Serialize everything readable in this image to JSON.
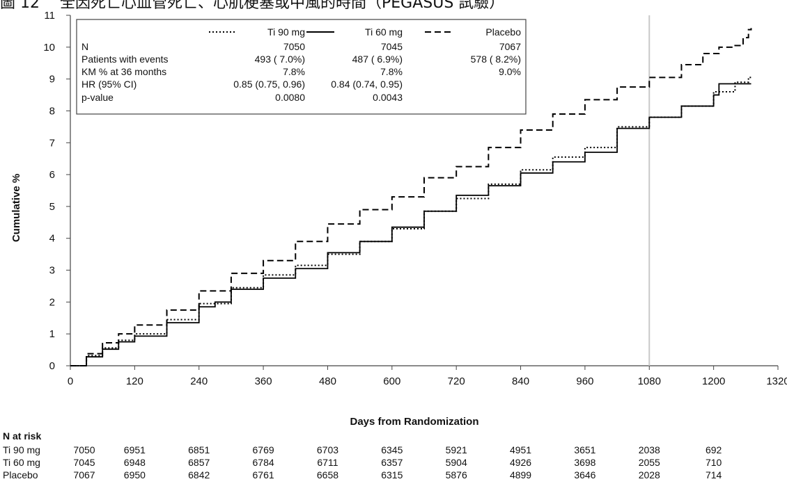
{
  "page": {
    "title": "圖 12 　全因死亡心血管死亡、心肌梗塞或中風的時間（PEGASUS 試驗）"
  },
  "chart_data": {
    "type": "line",
    "xlabel": "Days from Randomization",
    "ylabel": "Cumulative %",
    "xlim": [
      0,
      1320
    ],
    "ylim": [
      0,
      11
    ],
    "xticks": [
      "0",
      "120",
      "240",
      "360",
      "480",
      "600",
      "720",
      "840",
      "960",
      "1080",
      "1200",
      "1320"
    ],
    "yticks": [
      "0",
      "1",
      "2",
      "3",
      "4",
      "5",
      "6",
      "7",
      "8",
      "9",
      "10",
      "11"
    ],
    "reference_line_x": 1080,
    "grid": false,
    "legend_placement": "top-left (inside plot)",
    "series": [
      {
        "name": "Ti 90 mg",
        "style": "dotted",
        "color": "#000000",
        "points": [
          [
            0,
            0
          ],
          [
            30,
            0.32
          ],
          [
            60,
            0.56
          ],
          [
            90,
            0.8
          ],
          [
            120,
            1.0
          ],
          [
            180,
            1.45
          ],
          [
            240,
            1.95
          ],
          [
            300,
            2.45
          ],
          [
            360,
            2.85
          ],
          [
            420,
            3.15
          ],
          [
            480,
            3.5
          ],
          [
            540,
            3.9
          ],
          [
            600,
            4.3
          ],
          [
            660,
            4.85
          ],
          [
            720,
            5.25
          ],
          [
            780,
            5.7
          ],
          [
            840,
            6.15
          ],
          [
            900,
            6.55
          ],
          [
            960,
            6.85
          ],
          [
            1020,
            7.5
          ],
          [
            1080,
            7.8
          ],
          [
            1140,
            8.15
          ],
          [
            1200,
            8.6
          ],
          [
            1240,
            8.9
          ],
          [
            1265,
            9.05
          ],
          [
            1270,
            9.05
          ]
        ]
      },
      {
        "name": "Ti 60 mg",
        "style": "solid",
        "color": "#000000",
        "points": [
          [
            0,
            0
          ],
          [
            30,
            0.28
          ],
          [
            60,
            0.52
          ],
          [
            90,
            0.75
          ],
          [
            120,
            0.93
          ],
          [
            180,
            1.35
          ],
          [
            240,
            1.85
          ],
          [
            270,
            2.0
          ],
          [
            300,
            2.4
          ],
          [
            360,
            2.75
          ],
          [
            420,
            3.05
          ],
          [
            480,
            3.55
          ],
          [
            540,
            3.9
          ],
          [
            600,
            4.35
          ],
          [
            660,
            4.85
          ],
          [
            720,
            5.35
          ],
          [
            780,
            5.65
          ],
          [
            840,
            6.05
          ],
          [
            900,
            6.4
          ],
          [
            960,
            6.7
          ],
          [
            1020,
            7.45
          ],
          [
            1080,
            7.8
          ],
          [
            1140,
            8.15
          ],
          [
            1200,
            8.5
          ],
          [
            1210,
            8.85
          ],
          [
            1270,
            8.85
          ]
        ]
      },
      {
        "name": "Placebo",
        "style": "dashed",
        "color": "#000000",
        "points": [
          [
            0,
            0
          ],
          [
            30,
            0.38
          ],
          [
            60,
            0.72
          ],
          [
            90,
            1.0
          ],
          [
            120,
            1.28
          ],
          [
            180,
            1.75
          ],
          [
            240,
            2.35
          ],
          [
            300,
            2.9
          ],
          [
            360,
            3.3
          ],
          [
            420,
            3.9
          ],
          [
            480,
            4.45
          ],
          [
            540,
            4.9
          ],
          [
            600,
            5.3
          ],
          [
            660,
            5.9
          ],
          [
            720,
            6.25
          ],
          [
            780,
            6.85
          ],
          [
            840,
            7.4
          ],
          [
            900,
            7.9
          ],
          [
            960,
            8.35
          ],
          [
            1020,
            8.75
          ],
          [
            1080,
            9.05
          ],
          [
            1140,
            9.45
          ],
          [
            1180,
            9.8
          ],
          [
            1210,
            10.0
          ],
          [
            1240,
            10.05
          ],
          [
            1255,
            10.3
          ],
          [
            1265,
            10.55
          ],
          [
            1270,
            10.6
          ]
        ]
      }
    ],
    "legend": {
      "columns": [
        "Ti 90 mg",
        "Ti 60 mg",
        "Placebo"
      ],
      "rows": [
        {
          "label": "N",
          "values": [
            "7050",
            "7045",
            "7067"
          ]
        },
        {
          "label": "Patients with events",
          "values": [
            "493 ( 7.0%)",
            "487 ( 6.9%)",
            "578 ( 8.2%)"
          ]
        },
        {
          "label": "KM % at 36 months",
          "values": [
            "7.8%",
            "7.8%",
            "9.0%"
          ]
        },
        {
          "label": "HR (95% CI)",
          "values": [
            "0.85 (0.75, 0.96)",
            "0.84 (0.74, 0.95)",
            ""
          ]
        },
        {
          "label": "p-value",
          "values": [
            "0.0080",
            "0.0043",
            ""
          ]
        }
      ]
    },
    "n_at_risk": {
      "title": "N at risk",
      "days": [
        0,
        120,
        240,
        360,
        480,
        600,
        720,
        840,
        960,
        1080,
        1200
      ],
      "rows": [
        {
          "name": "Ti 90 mg",
          "values": [
            "7050",
            "6951",
            "6851",
            "6769",
            "6703",
            "6345",
            "5921",
            "4951",
            "3651",
            "2038",
            "692"
          ]
        },
        {
          "name": "Ti 60 mg",
          "values": [
            "7045",
            "6948",
            "6857",
            "6784",
            "6711",
            "6357",
            "5904",
            "4926",
            "3698",
            "2055",
            "710"
          ]
        },
        {
          "name": "Placebo",
          "values": [
            "7067",
            "6950",
            "6842",
            "6761",
            "6658",
            "6315",
            "5876",
            "4899",
            "3646",
            "2028",
            "714"
          ]
        }
      ]
    }
  }
}
